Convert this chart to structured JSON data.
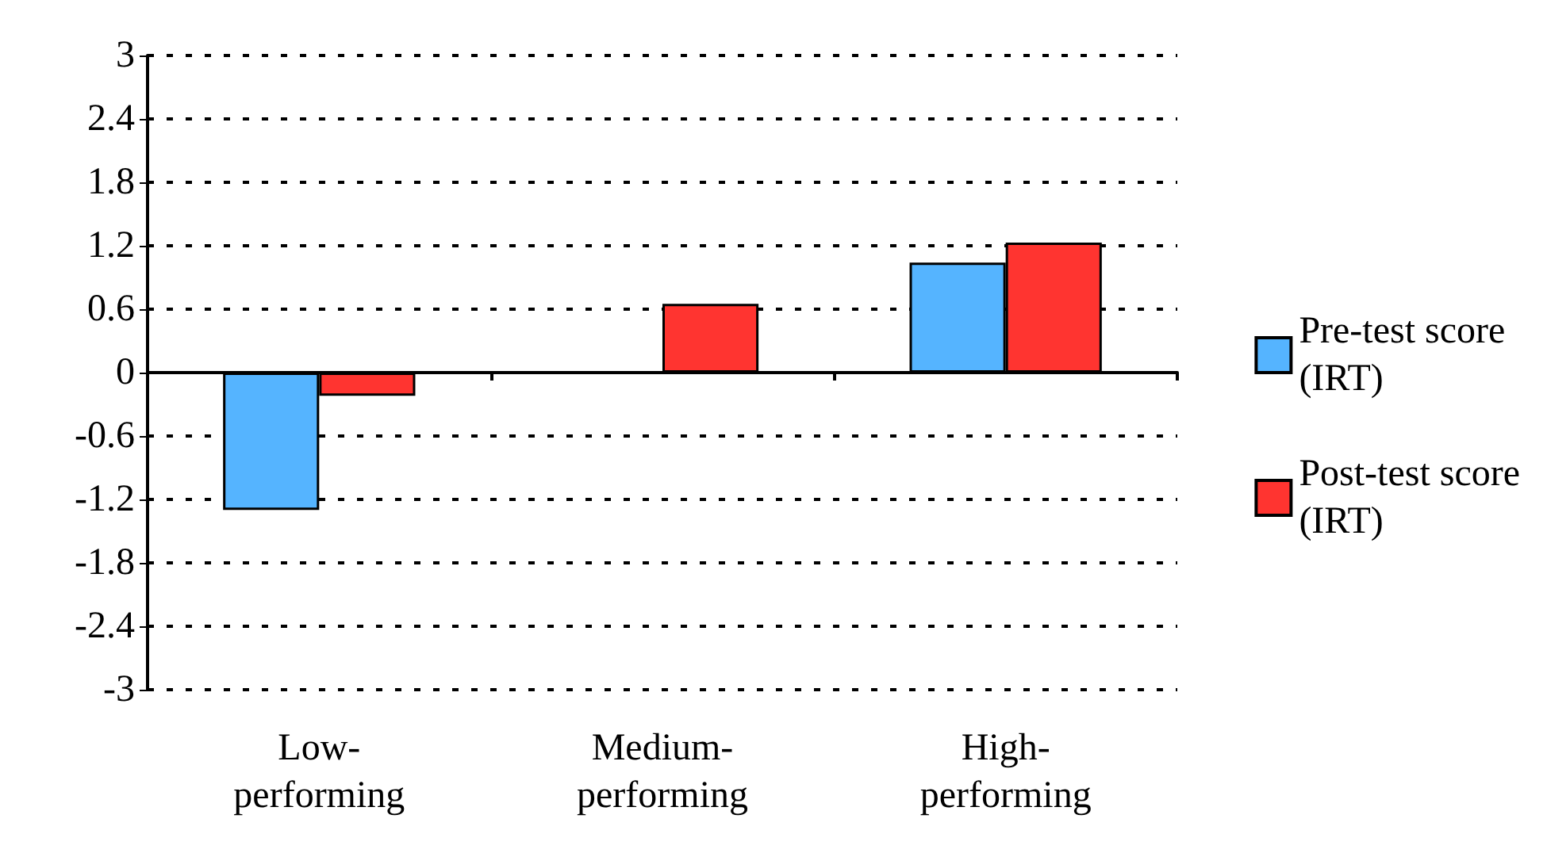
{
  "chart_data": {
    "type": "bar",
    "categories": [
      "Low-performing",
      "Medium-performing",
      "High-performing"
    ],
    "series": [
      {
        "name": "Pre-test score (IRT)",
        "color": "#55b4ff",
        "values": [
          -1.3,
          null,
          1.04
        ]
      },
      {
        "name": "Post-test score (IRT)",
        "color": "#ff3430",
        "values": [
          -0.22,
          0.65,
          1.23
        ]
      }
    ],
    "ylim": [
      -3,
      3
    ],
    "yticks": [
      -3,
      -2.4,
      -1.8,
      -1.2,
      -0.6,
      0,
      0.6,
      1.2,
      1.8,
      2.4,
      3
    ],
    "grid": "y",
    "legend": "right"
  }
}
